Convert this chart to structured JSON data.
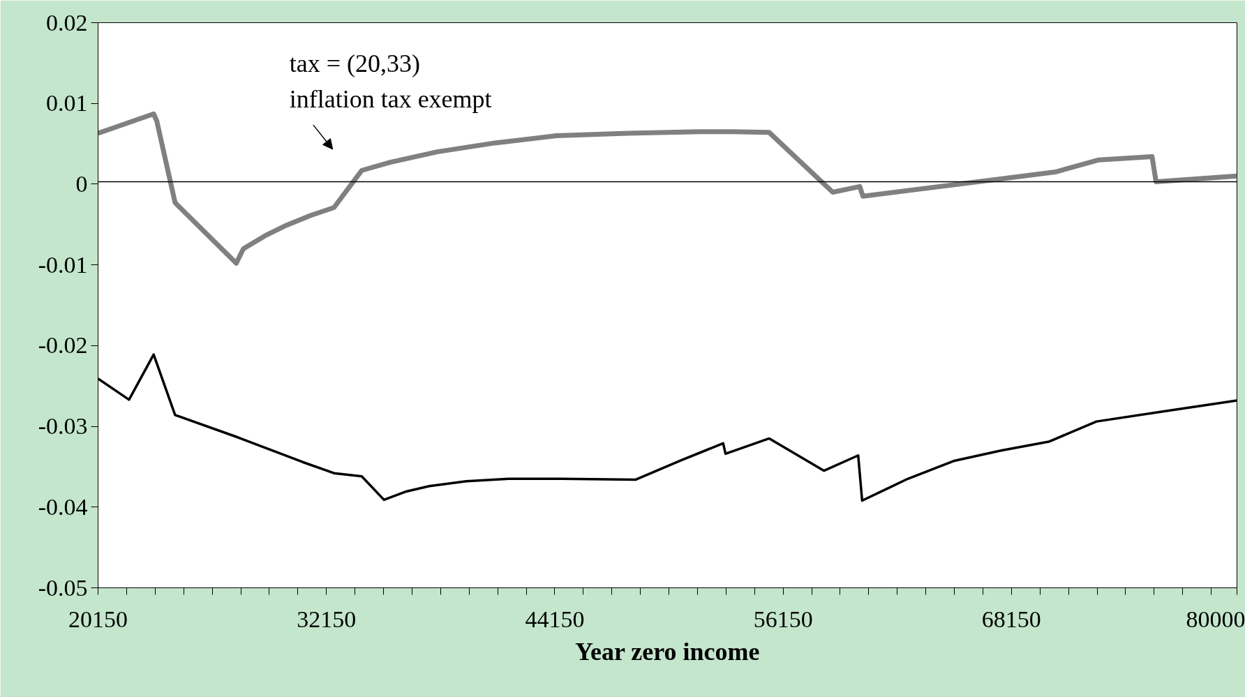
{
  "chart_data": {
    "type": "line",
    "xlabel": "Year zero income",
    "annotations": [
      "tax = (20,33)",
      "inflation tax exempt"
    ],
    "series": [
      {
        "color": "#808080",
        "x": [
          20150,
          23072,
          23239,
          24199,
          27413,
          27789,
          29000,
          30043,
          31300,
          32547,
          34008,
          35500,
          37973,
          41000,
          44234,
          48000,
          51747,
          53500,
          55420,
          58759,
          60178,
          60345,
          70446,
          72742,
          75539,
          75747,
          80000
        ],
        "values": [
          0.0063,
          0.0087,
          0.0078,
          -0.0023,
          -0.0098,
          -0.008,
          -0.0063,
          -0.0051,
          -0.0039,
          -0.0029,
          0.0017,
          0.0027,
          0.004,
          0.0051,
          0.006,
          0.0063,
          0.0065,
          0.0065,
          0.0064,
          -0.001,
          -0.0003,
          -0.0015,
          0.0015,
          0.003,
          0.0034,
          0.0003,
          0.001
        ]
      },
      {
        "color": "#000000",
        "x": [
          20150,
          21778,
          23072,
          24199,
          27538,
          30877,
          32547,
          34008,
          35176,
          36300,
          37555,
          39500,
          41729,
          44500,
          48408,
          50800,
          52999,
          53124,
          55420,
          58300,
          60095,
          60303,
          62700,
          65103,
          67600,
          70112,
          72617,
          76300,
          80000
        ],
        "values": [
          -0.0241,
          -0.0267,
          -0.0211,
          -0.0286,
          -0.0314,
          -0.0344,
          -0.0358,
          -0.0362,
          -0.0391,
          -0.0381,
          -0.0374,
          -0.0368,
          -0.0365,
          -0.0365,
          -0.0366,
          -0.0342,
          -0.0321,
          -0.0334,
          -0.0315,
          -0.0355,
          -0.0336,
          -0.0392,
          -0.0365,
          -0.0343,
          -0.033,
          -0.0319,
          -0.0294,
          -0.0281,
          -0.0268
        ]
      }
    ],
    "ref_lines": [
      {
        "axis": "y",
        "value": 0.0003,
        "color": "#000000"
      }
    ],
    "xlim": [
      20150,
      80000
    ],
    "xticks": [
      20150,
      {
        "value": 21650,
        "label": null
      },
      {
        "value": 23150,
        "label": null
      },
      {
        "value": 24650,
        "label": null
      },
      {
        "value": 26150,
        "label": null
      },
      {
        "value": 27650,
        "label": null
      },
      {
        "value": 29150,
        "label": null
      },
      {
        "value": 30650,
        "label": null
      },
      32150,
      {
        "value": 33650,
        "label": null
      },
      {
        "value": 35150,
        "label": null
      },
      {
        "value": 36650,
        "label": null
      },
      {
        "value": 38150,
        "label": null
      },
      {
        "value": 39650,
        "label": null
      },
      {
        "value": 41150,
        "label": null
      },
      {
        "value": 42650,
        "label": null
      },
      44150,
      {
        "value": 45650,
        "label": null
      },
      {
        "value": 47150,
        "label": null
      },
      {
        "value": 48650,
        "label": null
      },
      {
        "value": 50150,
        "label": null
      },
      {
        "value": 51650,
        "label": null
      },
      {
        "value": 53150,
        "label": null
      },
      {
        "value": 54650,
        "label": null
      },
      56150,
      {
        "value": 57650,
        "label": null
      },
      {
        "value": 59150,
        "label": null
      },
      {
        "value": 60650,
        "label": null
      },
      {
        "value": 62150,
        "label": null
      },
      {
        "value": 63650,
        "label": null
      },
      {
        "value": 65150,
        "label": null
      },
      {
        "value": 66650,
        "label": null
      },
      68150,
      {
        "value": 69650,
        "label": null
      },
      {
        "value": 71150,
        "label": null
      },
      {
        "value": 72650,
        "label": null
      },
      {
        "value": 74150,
        "label": null
      },
      {
        "value": 75650,
        "label": null
      },
      {
        "value": 77150,
        "label": null
      },
      {
        "value": 78650,
        "label": null
      },
      80000
    ],
    "ylim": [
      -0.05,
      0.02
    ],
    "yticks": [
      -0.05,
      -0.04,
      -0.03,
      -0.02,
      -0.01,
      0,
      0.01,
      0.02
    ],
    "grid": false,
    "marker": "none",
    "line_style": "solid"
  }
}
